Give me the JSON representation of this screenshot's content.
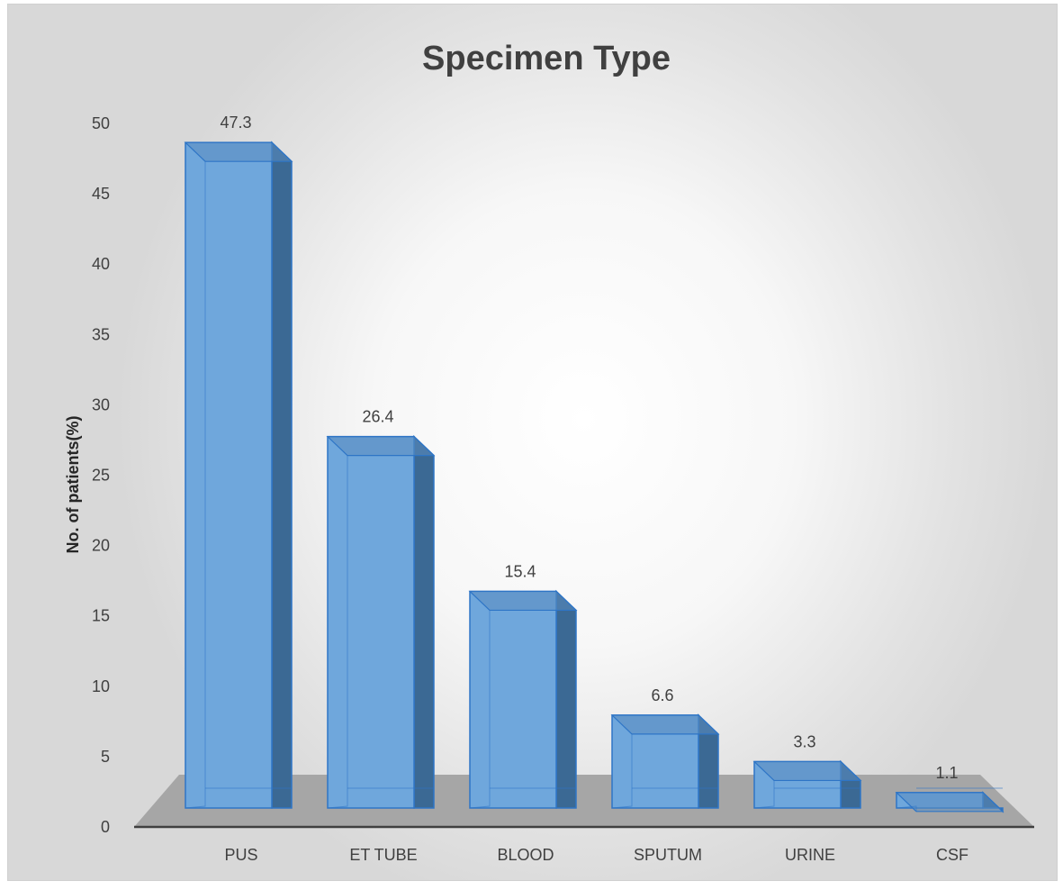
{
  "chart_data": {
    "type": "bar",
    "title": "Specimen Type",
    "ylabel": "No. of patients(%)",
    "xlabel": "",
    "categories": [
      "PUS",
      "ET TUBE",
      "BLOOD",
      "SPUTUM",
      "URINE",
      "CSF"
    ],
    "values": [
      47.3,
      26.4,
      15.4,
      6.6,
      3.3,
      1.1
    ],
    "value_labels": [
      "47.3",
      "26.4",
      "15.4",
      "6.6",
      "3.3",
      "1.1"
    ],
    "ylim": [
      0,
      50
    ],
    "yticks": [
      "0",
      "5",
      "10",
      "15",
      "20",
      "25",
      "30",
      "35",
      "40",
      "45",
      "50"
    ],
    "grid": false,
    "legend": "none",
    "style": "3d-column",
    "colors": {
      "bar_front": "#6fa7dc",
      "bar_side": "#3b6994",
      "bar_top": "#5b8dc0",
      "bar_edge": "#2e75c6",
      "floor": "#a6a6a6",
      "axis": "#404040",
      "text": "#404040"
    }
  }
}
